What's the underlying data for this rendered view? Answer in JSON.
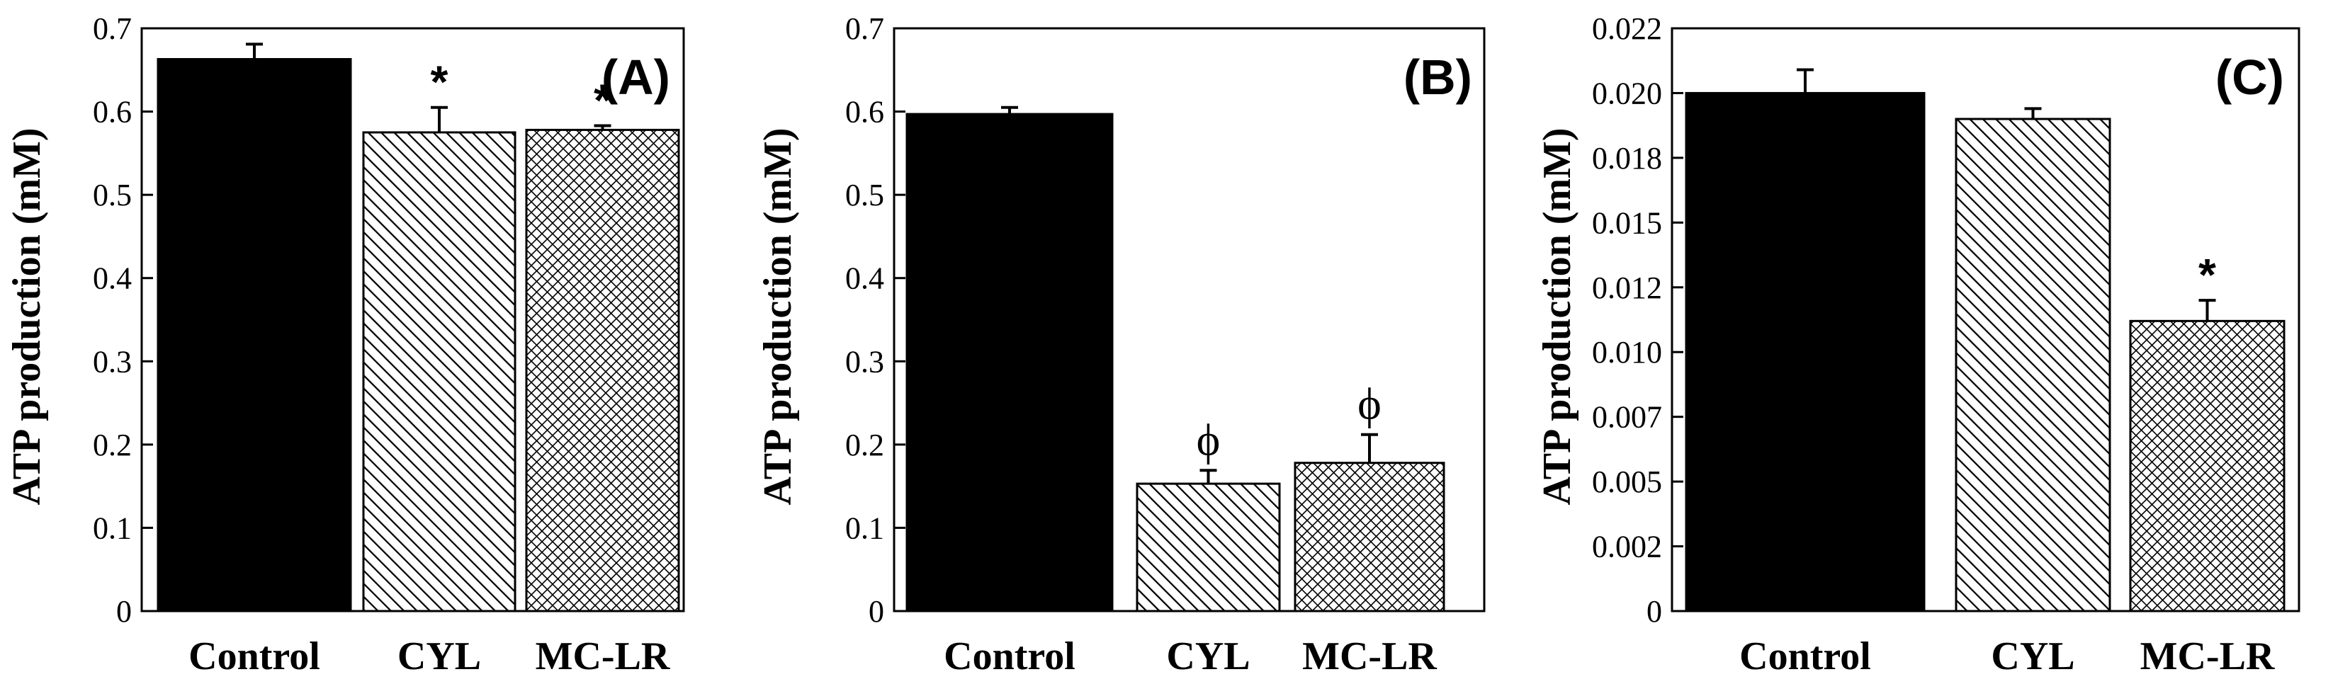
{
  "chart_data": [
    {
      "type": "bar",
      "panel_label": "(A)",
      "ylabel": "ATP production (mM)",
      "ylim": [
        0,
        0.7
      ],
      "yticks": [
        0,
        0.1,
        0.2,
        0.3,
        0.4,
        0.5,
        0.6,
        0.7
      ],
      "ytick_labels": [
        "0",
        "0.1",
        "0.2",
        "0.3",
        "0.4",
        "0.5",
        "0.6",
        "0.7"
      ],
      "categories": [
        "Control",
        "CYL",
        "MC-LR"
      ],
      "values": [
        0.663,
        0.575,
        0.578
      ],
      "errors": [
        0.018,
        0.03,
        0.005
      ],
      "annotations": [
        "",
        "*",
        "*"
      ],
      "fills": [
        "solid",
        "diagonal-hatch",
        "cross-hatch"
      ]
    },
    {
      "type": "bar",
      "panel_label": "(B)",
      "ylabel": "ATP production (mM)",
      "ylim": [
        0,
        0.7
      ],
      "yticks": [
        0,
        0.1,
        0.2,
        0.3,
        0.4,
        0.5,
        0.6,
        0.7
      ],
      "ytick_labels": [
        "0",
        "0.1",
        "0.2",
        "0.3",
        "0.4",
        "0.5",
        "0.6",
        "0.7"
      ],
      "categories": [
        "Control",
        "CYL",
        "MC-LR"
      ],
      "values": [
        0.597,
        0.153,
        0.178
      ],
      "errors": [
        0.008,
        0.016,
        0.034
      ],
      "annotations": [
        "",
        "ϕ",
        "ϕ"
      ],
      "fills": [
        "solid",
        "diagonal-hatch",
        "cross-hatch"
      ]
    },
    {
      "type": "bar",
      "panel_label": "(C)",
      "ylabel": "ATP production (mM)",
      "ylim": [
        0,
        0.0225
      ],
      "yticks": [
        0,
        0.0025,
        0.005,
        0.0075,
        0.01,
        0.0125,
        0.015,
        0.0175,
        0.02,
        0.0225
      ],
      "ytick_labels": [
        "0",
        "0.002",
        "0.005",
        "0.007",
        "0.010",
        "0.012",
        "0.015",
        "0.018",
        "0.020",
        "0.022"
      ],
      "categories": [
        "Control",
        "CYL",
        "MC-LR"
      ],
      "values": [
        0.02,
        0.019,
        0.0112
      ],
      "errors": [
        0.0009,
        0.0004,
        0.0008
      ],
      "annotations": [
        "",
        "",
        "*"
      ],
      "fills": [
        "solid",
        "diagonal-hatch",
        "cross-hatch"
      ]
    }
  ]
}
